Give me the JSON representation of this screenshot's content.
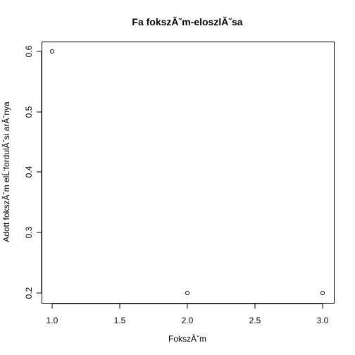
{
  "chart_data": {
    "type": "scatter",
    "title": "Fa fokszĂˇm-eloszlĂˇsa",
    "xlabel": "FokszĂˇm",
    "ylabel": "Adott fokszĂˇm elĹ‘fordulĂˇsi arĂˇnya",
    "x": [
      1.0,
      2.0,
      3.0
    ],
    "y": [
      0.6,
      0.2,
      0.2
    ],
    "xlim": [
      1.0,
      3.0
    ],
    "ylim": [
      0.2,
      0.6
    ],
    "xticks": [
      "1.0",
      "1.5",
      "2.0",
      "2.5",
      "3.0"
    ],
    "yticks": [
      "0.2",
      "0.3",
      "0.4",
      "0.5",
      "0.6"
    ],
    "grid": false,
    "marker": "open-circle"
  }
}
